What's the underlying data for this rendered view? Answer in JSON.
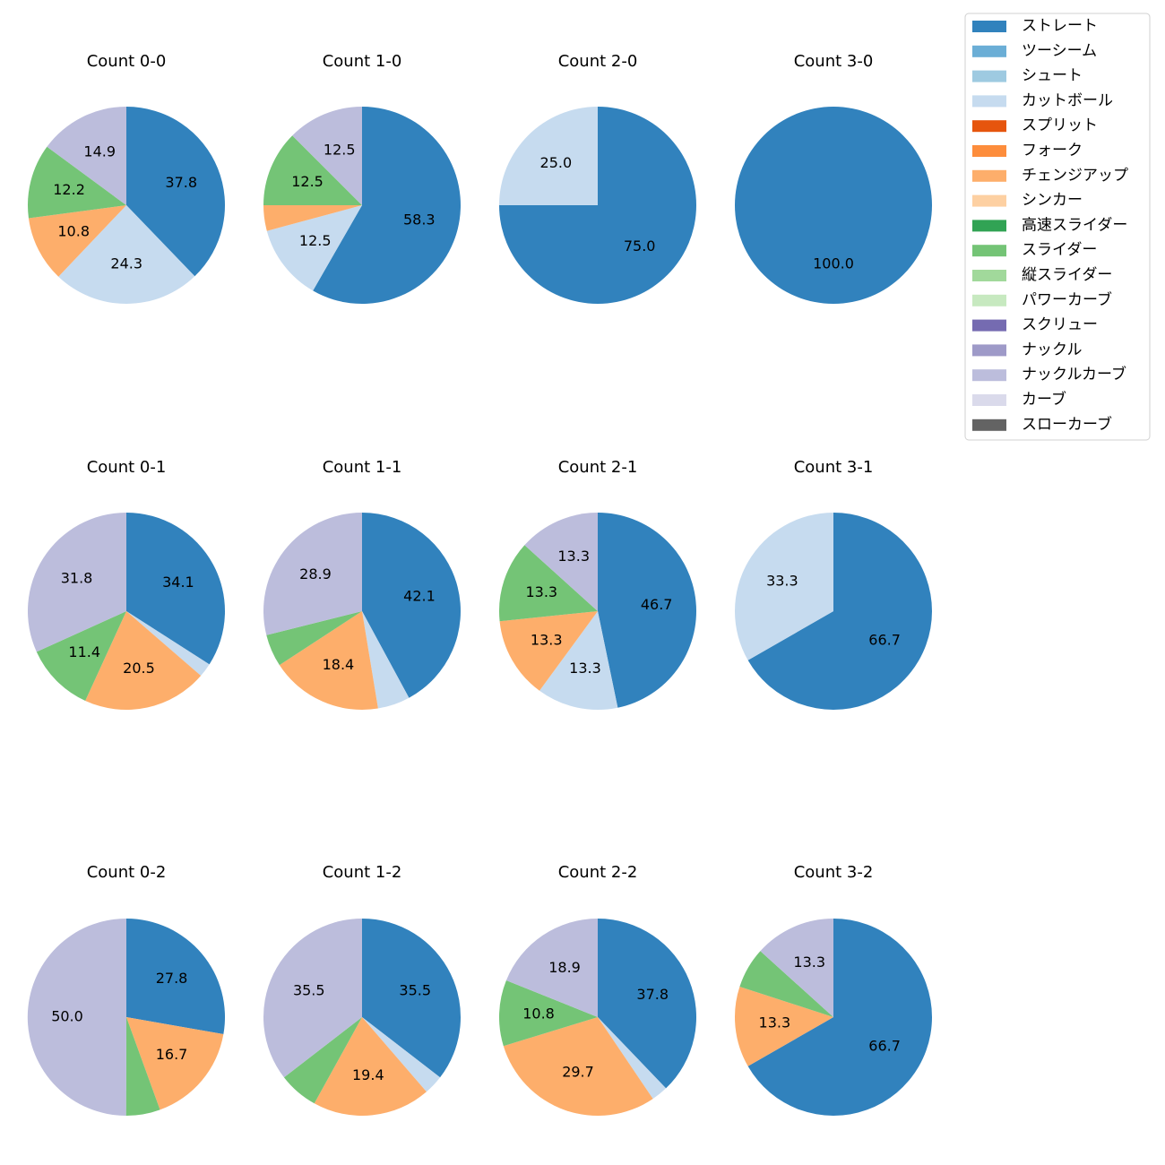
{
  "legend": {
    "items": [
      {
        "label": "ストレート",
        "color": "#3182bd"
      },
      {
        "label": "ツーシーム",
        "color": "#6baed6"
      },
      {
        "label": "シュート",
        "color": "#9ecae1"
      },
      {
        "label": "カットボール",
        "color": "#c6dbef"
      },
      {
        "label": "スプリット",
        "color": "#e6550d"
      },
      {
        "label": "フォーク",
        "color": "#fd8d3c"
      },
      {
        "label": "チェンジアップ",
        "color": "#fdae6b"
      },
      {
        "label": "シンカー",
        "color": "#fdd0a2"
      },
      {
        "label": "高速スライダー",
        "color": "#31a354"
      },
      {
        "label": "スライダー",
        "color": "#74c476"
      },
      {
        "label": "縦スライダー",
        "color": "#a1d99b"
      },
      {
        "label": "パワーカーブ",
        "color": "#c7e9c0"
      },
      {
        "label": "スクリュー",
        "color": "#756bb1"
      },
      {
        "label": "ナックル",
        "color": "#9e9ac8"
      },
      {
        "label": "ナックルカーブ",
        "color": "#bcbddc"
      },
      {
        "label": "カーブ",
        "color": "#dadaeb"
      },
      {
        "label": "スローカーブ",
        "color": "#636363"
      }
    ]
  },
  "chart_data": [
    {
      "type": "pie",
      "title": "Count 0-0",
      "slices": [
        {
          "category": "ストレート",
          "value": 37.8,
          "label": "37.8"
        },
        {
          "category": "カットボール",
          "value": 24.3,
          "label": "24.3"
        },
        {
          "category": "チェンジアップ",
          "value": 10.8,
          "label": "10.8"
        },
        {
          "category": "スライダー",
          "value": 12.2,
          "label": "12.2"
        },
        {
          "category": "ナックルカーブ",
          "value": 14.9,
          "label": "14.9"
        }
      ]
    },
    {
      "type": "pie",
      "title": "Count 1-0",
      "slices": [
        {
          "category": "ストレート",
          "value": 58.3,
          "label": "58.3"
        },
        {
          "category": "カットボール",
          "value": 12.5,
          "label": "12.5"
        },
        {
          "category": "チェンジアップ",
          "value": 4.2,
          "label": ""
        },
        {
          "category": "スライダー",
          "value": 12.5,
          "label": "12.5"
        },
        {
          "category": "ナックルカーブ",
          "value": 12.5,
          "label": "12.5"
        }
      ]
    },
    {
      "type": "pie",
      "title": "Count 2-0",
      "slices": [
        {
          "category": "ストレート",
          "value": 75.0,
          "label": "75.0"
        },
        {
          "category": "カットボール",
          "value": 25.0,
          "label": "25.0"
        }
      ]
    },
    {
      "type": "pie",
      "title": "Count 3-0",
      "slices": [
        {
          "category": "ストレート",
          "value": 100.0,
          "label": "100.0"
        }
      ]
    },
    {
      "type": "pie",
      "title": "Count 0-1",
      "slices": [
        {
          "category": "ストレート",
          "value": 34.1,
          "label": "34.1"
        },
        {
          "category": "カットボール",
          "value": 2.3,
          "label": ""
        },
        {
          "category": "チェンジアップ",
          "value": 20.5,
          "label": "20.5"
        },
        {
          "category": "スライダー",
          "value": 11.4,
          "label": "11.4"
        },
        {
          "category": "ナックルカーブ",
          "value": 31.8,
          "label": "31.8"
        }
      ]
    },
    {
      "type": "pie",
      "title": "Count 1-1",
      "slices": [
        {
          "category": "ストレート",
          "value": 42.1,
          "label": "42.1"
        },
        {
          "category": "カットボール",
          "value": 5.3,
          "label": ""
        },
        {
          "category": "チェンジアップ",
          "value": 18.4,
          "label": "18.4"
        },
        {
          "category": "スライダー",
          "value": 5.3,
          "label": ""
        },
        {
          "category": "ナックルカーブ",
          "value": 28.9,
          "label": "28.9"
        }
      ]
    },
    {
      "type": "pie",
      "title": "Count 2-1",
      "slices": [
        {
          "category": "ストレート",
          "value": 46.7,
          "label": "46.7"
        },
        {
          "category": "カットボール",
          "value": 13.3,
          "label": "13.3"
        },
        {
          "category": "チェンジアップ",
          "value": 13.3,
          "label": "13.3"
        },
        {
          "category": "スライダー",
          "value": 13.3,
          "label": "13.3"
        },
        {
          "category": "ナックルカーブ",
          "value": 13.3,
          "label": "13.3"
        }
      ]
    },
    {
      "type": "pie",
      "title": "Count 3-1",
      "slices": [
        {
          "category": "ストレート",
          "value": 66.7,
          "label": "66.7"
        },
        {
          "category": "カットボール",
          "value": 33.3,
          "label": "33.3"
        }
      ]
    },
    {
      "type": "pie",
      "title": "Count 0-2",
      "slices": [
        {
          "category": "ストレート",
          "value": 27.8,
          "label": "27.8"
        },
        {
          "category": "チェンジアップ",
          "value": 16.7,
          "label": "16.7"
        },
        {
          "category": "スライダー",
          "value": 5.6,
          "label": ""
        },
        {
          "category": "ナックルカーブ",
          "value": 50.0,
          "label": "50.0"
        }
      ]
    },
    {
      "type": "pie",
      "title": "Count 1-2",
      "slices": [
        {
          "category": "ストレート",
          "value": 35.5,
          "label": "35.5"
        },
        {
          "category": "カットボール",
          "value": 3.2,
          "label": ""
        },
        {
          "category": "チェンジアップ",
          "value": 19.4,
          "label": "19.4"
        },
        {
          "category": "スライダー",
          "value": 6.5,
          "label": ""
        },
        {
          "category": "ナックルカーブ",
          "value": 35.5,
          "label": "35.5"
        }
      ]
    },
    {
      "type": "pie",
      "title": "Count 2-2",
      "slices": [
        {
          "category": "ストレート",
          "value": 37.8,
          "label": "37.8"
        },
        {
          "category": "カットボール",
          "value": 2.7,
          "label": ""
        },
        {
          "category": "チェンジアップ",
          "value": 29.7,
          "label": "29.7"
        },
        {
          "category": "スライダー",
          "value": 10.8,
          "label": "10.8"
        },
        {
          "category": "ナックルカーブ",
          "value": 18.9,
          "label": "18.9"
        }
      ]
    },
    {
      "type": "pie",
      "title": "Count 3-2",
      "slices": [
        {
          "category": "ストレート",
          "value": 66.7,
          "label": "66.7"
        },
        {
          "category": "チェンジアップ",
          "value": 13.3,
          "label": "13.3"
        },
        {
          "category": "スライダー",
          "value": 6.7,
          "label": ""
        },
        {
          "category": "ナックルカーブ",
          "value": 13.3,
          "label": "13.3"
        }
      ]
    }
  ]
}
